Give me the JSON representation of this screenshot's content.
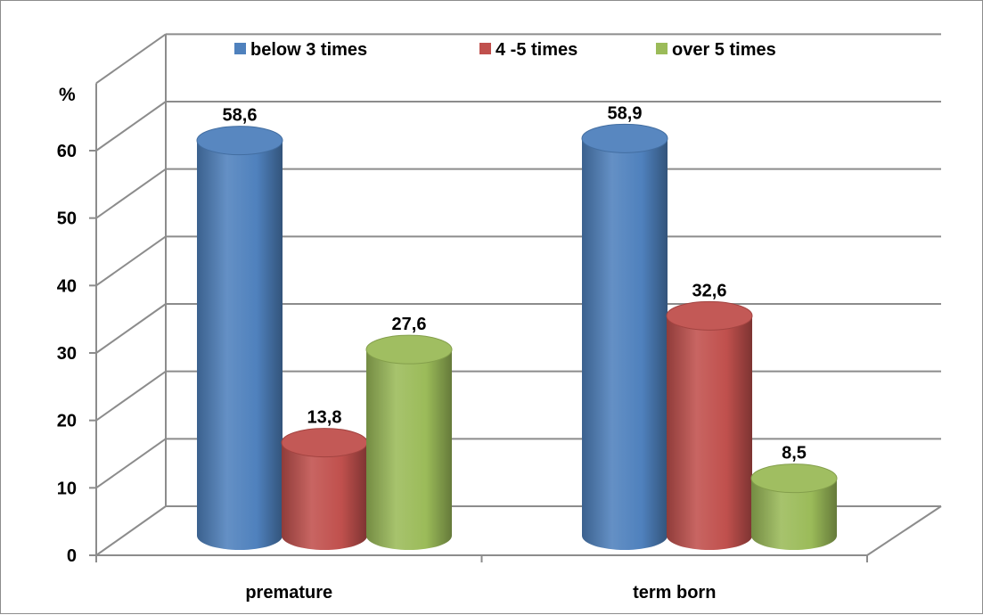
{
  "chart_data": {
    "type": "bar",
    "style": "3d-cylinder",
    "categories": [
      "premature",
      "term born"
    ],
    "series": [
      {
        "name": "below 3 times",
        "values": [
          58.6,
          58.9
        ],
        "labels": [
          "58,6",
          "58,9"
        ],
        "color": "#4f81bd"
      },
      {
        "name": "4 -5 times",
        "values": [
          13.8,
          32.6
        ],
        "labels": [
          "13,8",
          "32,6"
        ],
        "color": "#c0504d"
      },
      {
        "name": "over 5 times",
        "values": [
          27.6,
          8.5
        ],
        "labels": [
          "27,6",
          "8,5"
        ],
        "color": "#9bbb59"
      }
    ],
    "ylabel": "%",
    "ylim": [
      0,
      60
    ],
    "yticks": [
      "0",
      "10",
      "20",
      "30",
      "40",
      "50",
      "60"
    ],
    "grid": true,
    "legend_position": "top"
  }
}
